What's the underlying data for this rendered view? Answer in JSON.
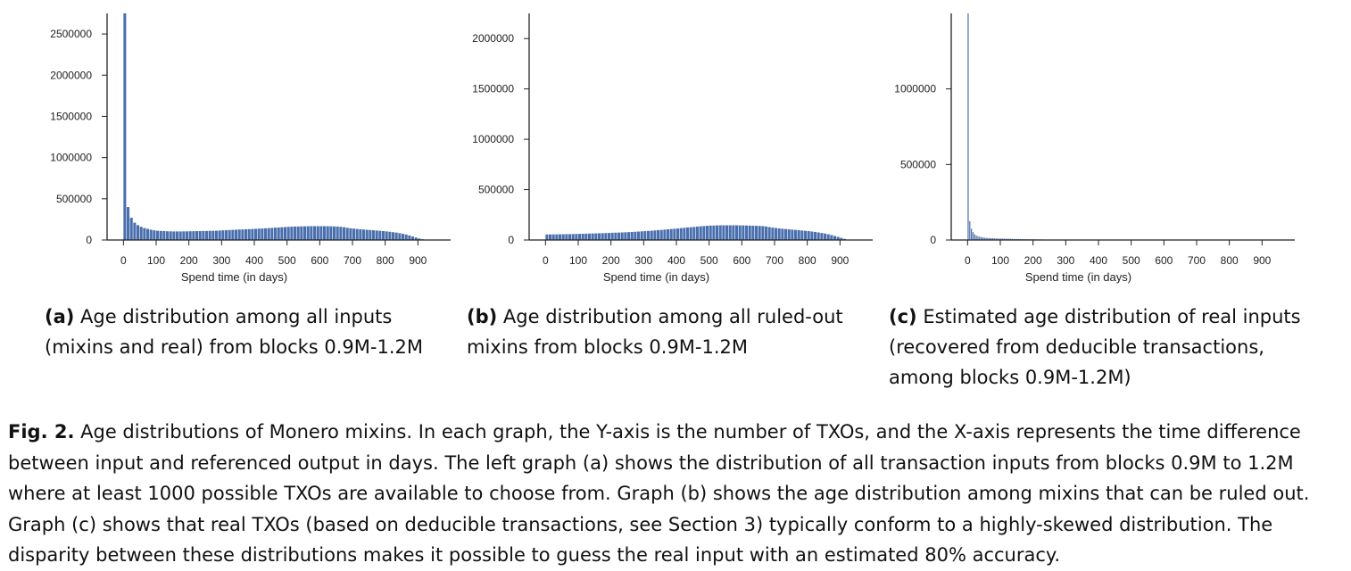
{
  "chart_data": [
    {
      "type": "bar",
      "panel": "a",
      "xlabel": "Spend time (in days)",
      "ylabel": "",
      "xlim": [
        -50,
        1000
      ],
      "ylim": [
        0,
        2750000
      ],
      "yticks": [
        0,
        500000,
        1000000,
        1500000,
        2000000,
        2500000
      ],
      "ytick_labels": [
        "0",
        "500000",
        "1000000",
        "1500000",
        "2000000",
        "2500000"
      ],
      "xticks": [
        0,
        100,
        200,
        300,
        400,
        500,
        600,
        700,
        800,
        900
      ],
      "bin_width": 10,
      "x": [
        0,
        10,
        20,
        30,
        40,
        50,
        60,
        70,
        80,
        90,
        100,
        110,
        120,
        130,
        140,
        150,
        160,
        170,
        180,
        190,
        200,
        210,
        220,
        230,
        240,
        250,
        260,
        270,
        280,
        290,
        300,
        310,
        320,
        330,
        340,
        350,
        360,
        370,
        380,
        390,
        400,
        410,
        420,
        430,
        440,
        450,
        460,
        470,
        480,
        490,
        500,
        510,
        520,
        530,
        540,
        550,
        560,
        570,
        580,
        590,
        600,
        610,
        620,
        630,
        640,
        650,
        660,
        670,
        680,
        690,
        700,
        710,
        720,
        730,
        740,
        750,
        760,
        770,
        780,
        790,
        800,
        810,
        820,
        830,
        840,
        850,
        860,
        870,
        880,
        890,
        900,
        910,
        920
      ],
      "values": [
        2750000,
        400000,
        270000,
        210000,
        180000,
        160000,
        145000,
        135000,
        125000,
        118000,
        112000,
        110000,
        108000,
        106000,
        105000,
        104000,
        104000,
        104000,
        105000,
        105000,
        106000,
        107000,
        108000,
        108000,
        109000,
        110000,
        111000,
        112000,
        113000,
        115000,
        117000,
        119000,
        121000,
        123000,
        125000,
        127000,
        128000,
        130000,
        132000,
        134000,
        136000,
        138000,
        140000,
        142000,
        144000,
        147000,
        150000,
        152000,
        155000,
        157000,
        160000,
        162000,
        163000,
        164000,
        165000,
        166000,
        167000,
        168000,
        168000,
        168000,
        168000,
        168000,
        167000,
        166000,
        165000,
        163000,
        160000,
        155000,
        148000,
        142000,
        138000,
        134000,
        130000,
        127000,
        124000,
        121000,
        118000,
        115000,
        112000,
        108000,
        104000,
        100000,
        95000,
        90000,
        83000,
        75000,
        66000,
        55000,
        42000,
        30000,
        18000,
        9000,
        3000
      ]
    },
    {
      "type": "bar",
      "panel": "b",
      "xlabel": "Spend time (in days)",
      "ylabel": "",
      "xlim": [
        -50,
        1000
      ],
      "ylim": [
        0,
        2250000
      ],
      "yticks": [
        0,
        500000,
        1000000,
        1500000,
        2000000
      ],
      "ytick_labels": [
        "0",
        "500000",
        "1000000",
        "1500000",
        "2000000"
      ],
      "xticks": [
        0,
        100,
        200,
        300,
        400,
        500,
        600,
        700,
        800,
        900
      ],
      "bin_width": 10,
      "x": [
        0,
        10,
        20,
        30,
        40,
        50,
        60,
        70,
        80,
        90,
        100,
        110,
        120,
        130,
        140,
        150,
        160,
        170,
        180,
        190,
        200,
        210,
        220,
        230,
        240,
        250,
        260,
        270,
        280,
        290,
        300,
        310,
        320,
        330,
        340,
        350,
        360,
        370,
        380,
        390,
        400,
        410,
        420,
        430,
        440,
        450,
        460,
        470,
        480,
        490,
        500,
        510,
        520,
        530,
        540,
        550,
        560,
        570,
        580,
        590,
        600,
        610,
        620,
        630,
        640,
        650,
        660,
        670,
        680,
        690,
        700,
        710,
        720,
        730,
        740,
        750,
        760,
        770,
        780,
        790,
        800,
        810,
        820,
        830,
        840,
        850,
        860,
        870,
        880,
        890,
        900,
        910,
        920
      ],
      "values": [
        55000,
        55000,
        56000,
        56000,
        57000,
        57000,
        58000,
        58000,
        59000,
        60000,
        61000,
        62000,
        63000,
        64000,
        65000,
        66000,
        67000,
        68000,
        69000,
        70000,
        72000,
        73000,
        74000,
        75000,
        77000,
        78000,
        80000,
        82000,
        84000,
        86000,
        88000,
        90000,
        92000,
        95000,
        98000,
        100000,
        103000,
        106000,
        109000,
        112000,
        115000,
        118000,
        121000,
        124000,
        127000,
        130000,
        133000,
        136000,
        139000,
        141000,
        143000,
        144000,
        145000,
        146000,
        146000,
        146000,
        146000,
        146000,
        146000,
        145000,
        145000,
        144000,
        143000,
        142000,
        141000,
        140000,
        138000,
        134000,
        128000,
        123000,
        119000,
        115000,
        112000,
        109000,
        106000,
        103000,
        100000,
        97000,
        94000,
        91000,
        88000,
        84000,
        80000,
        75000,
        70000,
        64000,
        57000,
        49000,
        40000,
        31000,
        21000,
        11000,
        4000
      ]
    },
    {
      "type": "bar",
      "panel": "c",
      "xlabel": "Spend time (in days)",
      "ylabel": "",
      "xlim": [
        -50,
        1000
      ],
      "ylim": [
        0,
        1500000
      ],
      "yticks": [
        0,
        500000,
        1000000
      ],
      "ytick_labels": [
        "0",
        "500000",
        "1000000"
      ],
      "xticks": [
        0,
        100,
        200,
        300,
        400,
        500,
        600,
        700,
        800,
        900
      ],
      "bin_width": 5,
      "x": [
        0,
        5,
        10,
        15,
        20,
        25,
        30,
        35,
        40,
        45,
        50,
        55,
        60,
        65,
        70,
        75,
        80,
        85,
        90,
        95,
        100,
        105,
        110,
        115,
        120,
        125,
        130,
        135,
        140,
        145,
        150,
        155,
        160,
        165,
        170,
        175,
        180,
        185,
        190,
        195,
        200,
        205,
        210,
        215,
        220,
        225,
        230,
        235,
        240,
        245,
        250,
        255,
        260,
        265,
        270,
        275,
        280,
        285,
        290,
        295
      ],
      "values": [
        1500000,
        125000,
        75000,
        52000,
        38000,
        30000,
        25000,
        22000,
        19000,
        17000,
        15500,
        14500,
        13500,
        12800,
        12000,
        11500,
        11000,
        10500,
        10000,
        9700,
        9400,
        9100,
        8800,
        8500,
        8200,
        7900,
        7600,
        7300,
        7000,
        6800,
        6600,
        6400,
        6200,
        6000,
        5800,
        5600,
        5400,
        5200,
        5000,
        4800,
        4600,
        4400,
        4200,
        4000,
        3800,
        3600,
        3400,
        3200,
        3000,
        2800,
        2600,
        2400,
        2200,
        2000,
        1800,
        1600,
        1400,
        1200,
        1000,
        800
      ]
    }
  ],
  "subcaptions": {
    "a": {
      "tag": "(a)",
      "text": " Age distribution among all inputs (mixins and real) from blocks 0.9M-1.2M"
    },
    "b": {
      "tag": "(b)",
      "text": " Age distribution among all ruled-out mixins from blocks 0.9M-1.2M"
    },
    "c": {
      "tag": "(c)",
      "text": " Estimated age distribution of real inputs (recovered from deducible transactions, among blocks 0.9M-1.2M)"
    }
  },
  "figure_caption": {
    "label": "Fig. 2.",
    "text": " Age distributions of Monero mixins. In each graph, the Y-axis is the number of TXOs, and the X-axis represents the time difference between input and referenced output in days. The left graph (a) shows the distribution of all transaction inputs from blocks 0.9M to 1.2M where at least 1000 possible TXOs are available to choose from. Graph (b) shows the age distribution among mixins that can be ruled out. Graph (c) shows that real TXOs (based on deducible transactions, see Section 3) typically conform to a highly-skewed distribution. The disparity between these distributions makes it possible to guess the real input with an estimated 80% accuracy."
  },
  "colors": {
    "bar": "#4a6fae",
    "axis": "#222222"
  }
}
